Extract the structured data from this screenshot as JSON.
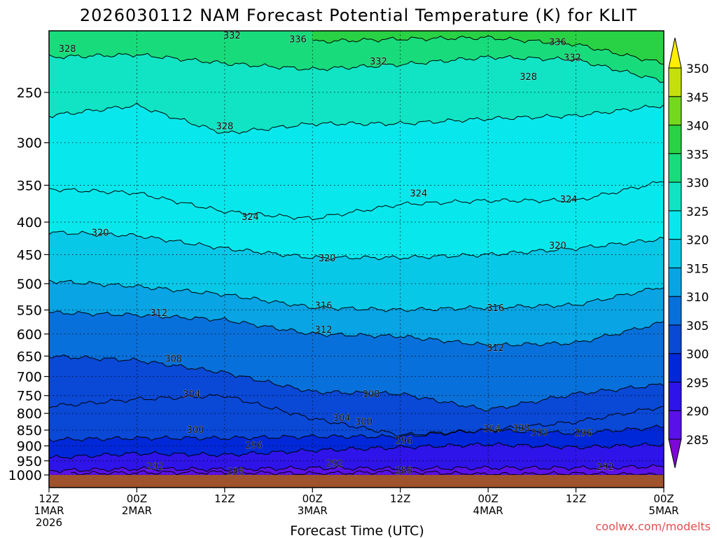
{
  "chart_data": {
    "type": "heatmap",
    "title": "2026030112 NAM Forecast Potential Temperature (K) for KLIT",
    "xlabel": "Forecast Time (UTC)",
    "ylabel": "",
    "credit": "coolwx.com/modelts",
    "y_scale": "log",
    "y_inverted": true,
    "ylim": [
      1000,
      200
    ],
    "y_ticks": [
      "250",
      "300",
      "350",
      "400",
      "450",
      "500",
      "550",
      "600",
      "650",
      "700",
      "750",
      "800",
      "850",
      "900",
      "950",
      "1000"
    ],
    "x_ticks": [
      {
        "hour": 0,
        "label1": "12Z",
        "label2": "1MAR",
        "label3": "2026"
      },
      {
        "hour": 12,
        "label1": "00Z",
        "label2": "2MAR",
        "label3": ""
      },
      {
        "hour": 24,
        "label1": "12Z",
        "label2": "",
        "label3": ""
      },
      {
        "hour": 36,
        "label1": "00Z",
        "label2": "3MAR",
        "label3": ""
      },
      {
        "hour": 48,
        "label1": "12Z",
        "label2": "",
        "label3": ""
      },
      {
        "hour": 60,
        "label1": "00Z",
        "label2": "4MAR",
        "label3": ""
      },
      {
        "hour": 72,
        "label1": "12Z",
        "label2": "",
        "label3": ""
      },
      {
        "hour": 84,
        "label1": "00Z",
        "label2": "5MAR",
        "label3": ""
      }
    ],
    "colorbar": {
      "levels": [
        285,
        290,
        295,
        300,
        305,
        310,
        315,
        320,
        325,
        330,
        335,
        340,
        345,
        350
      ],
      "colors": [
        "#7d08d8",
        "#5a10e8",
        "#2e14e8",
        "#0028d8",
        "#0a48d6",
        "#0870da",
        "#08a4e4",
        "#08c8e8",
        "#08e8ec",
        "#10e4c4",
        "#18dc7c",
        "#28d244",
        "#74d81c",
        "#c4e00c",
        "#ffee00"
      ]
    },
    "contour_label_values": [
      "288",
      "292",
      "296",
      "300",
      "304",
      "308",
      "312",
      "316",
      "320",
      "324",
      "328",
      "332",
      "336"
    ],
    "series": [
      {
        "name": "288",
        "values": [
          [
            3,
            995
          ],
          [
            12,
            992
          ],
          [
            24,
            990
          ],
          [
            36,
            995
          ],
          [
            48,
            988
          ],
          [
            60,
            998
          ],
          [
            72,
            995
          ],
          [
            84,
            1000
          ]
        ]
      },
      {
        "name": "292",
        "values": [
          [
            0,
            985
          ],
          [
            12,
            978
          ],
          [
            24,
            980
          ],
          [
            36,
            975
          ],
          [
            48,
            978
          ],
          [
            60,
            975
          ],
          [
            72,
            975
          ],
          [
            84,
            970
          ]
        ]
      },
      {
        "name": "296",
        "values": [
          [
            0,
            940
          ],
          [
            12,
            925
          ],
          [
            24,
            930
          ],
          [
            36,
            915
          ],
          [
            48,
            905
          ],
          [
            60,
            895
          ],
          [
            72,
            905
          ],
          [
            84,
            895
          ]
        ]
      },
      {
        "name": "300",
        "values": [
          [
            0,
            880
          ],
          [
            12,
            875
          ],
          [
            24,
            875
          ],
          [
            36,
            870
          ],
          [
            48,
            870
          ],
          [
            60,
            850
          ],
          [
            72,
            860
          ],
          [
            84,
            840
          ]
        ]
      },
      {
        "name": "304",
        "values": [
          [
            0,
            780
          ],
          [
            12,
            760
          ],
          [
            24,
            750
          ],
          [
            36,
            815
          ],
          [
            48,
            865
          ],
          [
            60,
            850
          ],
          [
            72,
            825
          ],
          [
            84,
            780
          ]
        ]
      },
      {
        "name": "308",
        "values": [
          [
            0,
            650
          ],
          [
            12,
            660
          ],
          [
            24,
            690
          ],
          [
            36,
            740
          ],
          [
            48,
            745
          ],
          [
            60,
            790
          ],
          [
            72,
            745
          ],
          [
            84,
            720
          ]
        ]
      },
      {
        "name": "312",
        "values": [
          [
            0,
            555
          ],
          [
            12,
            560
          ],
          [
            24,
            570
          ],
          [
            36,
            600
          ],
          [
            48,
            605
          ],
          [
            60,
            625
          ],
          [
            72,
            620
          ],
          [
            84,
            575
          ]
        ]
      },
      {
        "name": "316",
        "values": [
          [
            0,
            495
          ],
          [
            12,
            505
          ],
          [
            24,
            520
          ],
          [
            36,
            545
          ],
          [
            48,
            550
          ],
          [
            60,
            545
          ],
          [
            72,
            540
          ],
          [
            84,
            505
          ]
        ]
      },
      {
        "name": "320",
        "values": [
          [
            0,
            415
          ],
          [
            12,
            420
          ],
          [
            24,
            440
          ],
          [
            36,
            455
          ],
          [
            48,
            455
          ],
          [
            60,
            450
          ],
          [
            72,
            440
          ],
          [
            84,
            425
          ]
        ]
      },
      {
        "name": "324",
        "values": [
          [
            0,
            355
          ],
          [
            12,
            360
          ],
          [
            24,
            385
          ],
          [
            36,
            395
          ],
          [
            48,
            375
          ],
          [
            60,
            370
          ],
          [
            72,
            370
          ],
          [
            84,
            345
          ]
        ]
      },
      {
        "name": "328",
        "values": [
          [
            0,
            272
          ],
          [
            12,
            262
          ],
          [
            24,
            290
          ],
          [
            36,
            280
          ],
          [
            48,
            280
          ],
          [
            60,
            275
          ],
          [
            72,
            272
          ],
          [
            84,
            262
          ]
        ]
      },
      {
        "name": "332",
        "values": [
          [
            0,
            220
          ],
          [
            12,
            218
          ],
          [
            24,
            225
          ],
          [
            36,
            230
          ],
          [
            48,
            226
          ],
          [
            60,
            220
          ],
          [
            72,
            222
          ],
          [
            84,
            240
          ]
        ]
      },
      {
        "name": "336",
        "values": [
          [
            36,
            208
          ],
          [
            48,
            206
          ],
          [
            60,
            205
          ],
          [
            72,
            210
          ],
          [
            84,
            225
          ]
        ]
      }
    ],
    "contour_labels": [
      {
        "value": "288",
        "hour": 25.5,
        "p": 986
      },
      {
        "value": "288",
        "hour": 48.5,
        "p": 983
      },
      {
        "value": "292",
        "hour": 14.5,
        "p": 968
      },
      {
        "value": "292",
        "hour": 39,
        "p": 958
      },
      {
        "value": "292",
        "hour": 76,
        "p": 970
      },
      {
        "value": "296",
        "hour": 28,
        "p": 897
      },
      {
        "value": "296",
        "hour": 48.5,
        "p": 882
      },
      {
        "value": "296",
        "hour": 73,
        "p": 858
      },
      {
        "value": "300",
        "hour": 20,
        "p": 848
      },
      {
        "value": "300",
        "hour": 43,
        "p": 823
      },
      {
        "value": "300",
        "hour": 67,
        "p": 857
      },
      {
        "value": "304",
        "hour": 19.5,
        "p": 745
      },
      {
        "value": "304",
        "hour": 40,
        "p": 812
      },
      {
        "value": "304",
        "hour": 60.5,
        "p": 845
      },
      {
        "value": "308",
        "hour": 17,
        "p": 655
      },
      {
        "value": "308",
        "hour": 44,
        "p": 745
      },
      {
        "value": "308",
        "hour": 64.5,
        "p": 842
      },
      {
        "value": "312",
        "hour": 15,
        "p": 555
      },
      {
        "value": "312",
        "hour": 37.5,
        "p": 590
      },
      {
        "value": "312",
        "hour": 61,
        "p": 630
      },
      {
        "value": "316",
        "hour": 37.5,
        "p": 540
      },
      {
        "value": "316",
        "hour": 61,
        "p": 545
      },
      {
        "value": "320",
        "hour": 7,
        "p": 415
      },
      {
        "value": "320",
        "hour": 38,
        "p": 455
      },
      {
        "value": "320",
        "hour": 69.5,
        "p": 435
      },
      {
        "value": "324",
        "hour": 27.5,
        "p": 392
      },
      {
        "value": "324",
        "hour": 50.5,
        "p": 360
      },
      {
        "value": "324",
        "hour": 71,
        "p": 368
      },
      {
        "value": "328",
        "hour": 2.5,
        "p": 213
      },
      {
        "value": "328",
        "hour": 24,
        "p": 282
      },
      {
        "value": "328",
        "hour": 65.5,
        "p": 236
      },
      {
        "value": "332",
        "hour": 25,
        "p": 203
      },
      {
        "value": "332",
        "hour": 45,
        "p": 223
      },
      {
        "value": "332",
        "hour": 71.5,
        "p": 220
      },
      {
        "value": "336",
        "hour": 34,
        "p": 206
      },
      {
        "value": "336",
        "hour": 69.5,
        "p": 208
      }
    ]
  }
}
